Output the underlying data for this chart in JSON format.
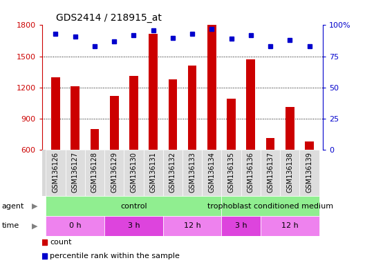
{
  "title": "GDS2414 / 218915_at",
  "samples": [
    "GSM136126",
    "GSM136127",
    "GSM136128",
    "GSM136129",
    "GSM136130",
    "GSM136131",
    "GSM136132",
    "GSM136133",
    "GSM136134",
    "GSM136135",
    "GSM136136",
    "GSM136137",
    "GSM136138",
    "GSM136139"
  ],
  "bar_values": [
    1300,
    1210,
    800,
    1120,
    1310,
    1720,
    1280,
    1410,
    1800,
    1090,
    1470,
    710,
    1010,
    680
  ],
  "percentile_values": [
    93,
    91,
    83,
    87,
    92,
    96,
    90,
    93,
    97,
    89,
    92,
    83,
    88,
    83
  ],
  "bar_color": "#cc0000",
  "dot_color": "#0000cc",
  "ylim_left": [
    600,
    1800
  ],
  "ylim_right": [
    0,
    100
  ],
  "yticks_left": [
    600,
    900,
    1200,
    1500,
    1800
  ],
  "yticks_right": [
    0,
    25,
    50,
    75,
    100
  ],
  "grid_lines": [
    900,
    1200,
    1500
  ],
  "background_color": "#ffffff",
  "plot_bg_color": "#ffffff",
  "tick_bg_color": "#d8d8d8",
  "agent_groups": [
    {
      "label": "control",
      "start": 0,
      "end": 9,
      "color": "#90ee90"
    },
    {
      "label": "trophoblast conditioned medium",
      "start": 9,
      "end": 14,
      "color": "#90ee90"
    }
  ],
  "time_groups": [
    {
      "label": "0 h",
      "start": 0,
      "end": 3,
      "color": "#ee82ee"
    },
    {
      "label": "3 h",
      "start": 3,
      "end": 6,
      "color": "#dd44dd"
    },
    {
      "label": "12 h",
      "start": 6,
      "end": 9,
      "color": "#ee82ee"
    },
    {
      "label": "3 h",
      "start": 9,
      "end": 11,
      "color": "#dd44dd"
    },
    {
      "label": "12 h",
      "start": 11,
      "end": 14,
      "color": "#ee82ee"
    }
  ],
  "bar_width": 0.45,
  "tick_label_fontsize": 7,
  "annotation_fontsize": 8,
  "legend_fontsize": 8
}
